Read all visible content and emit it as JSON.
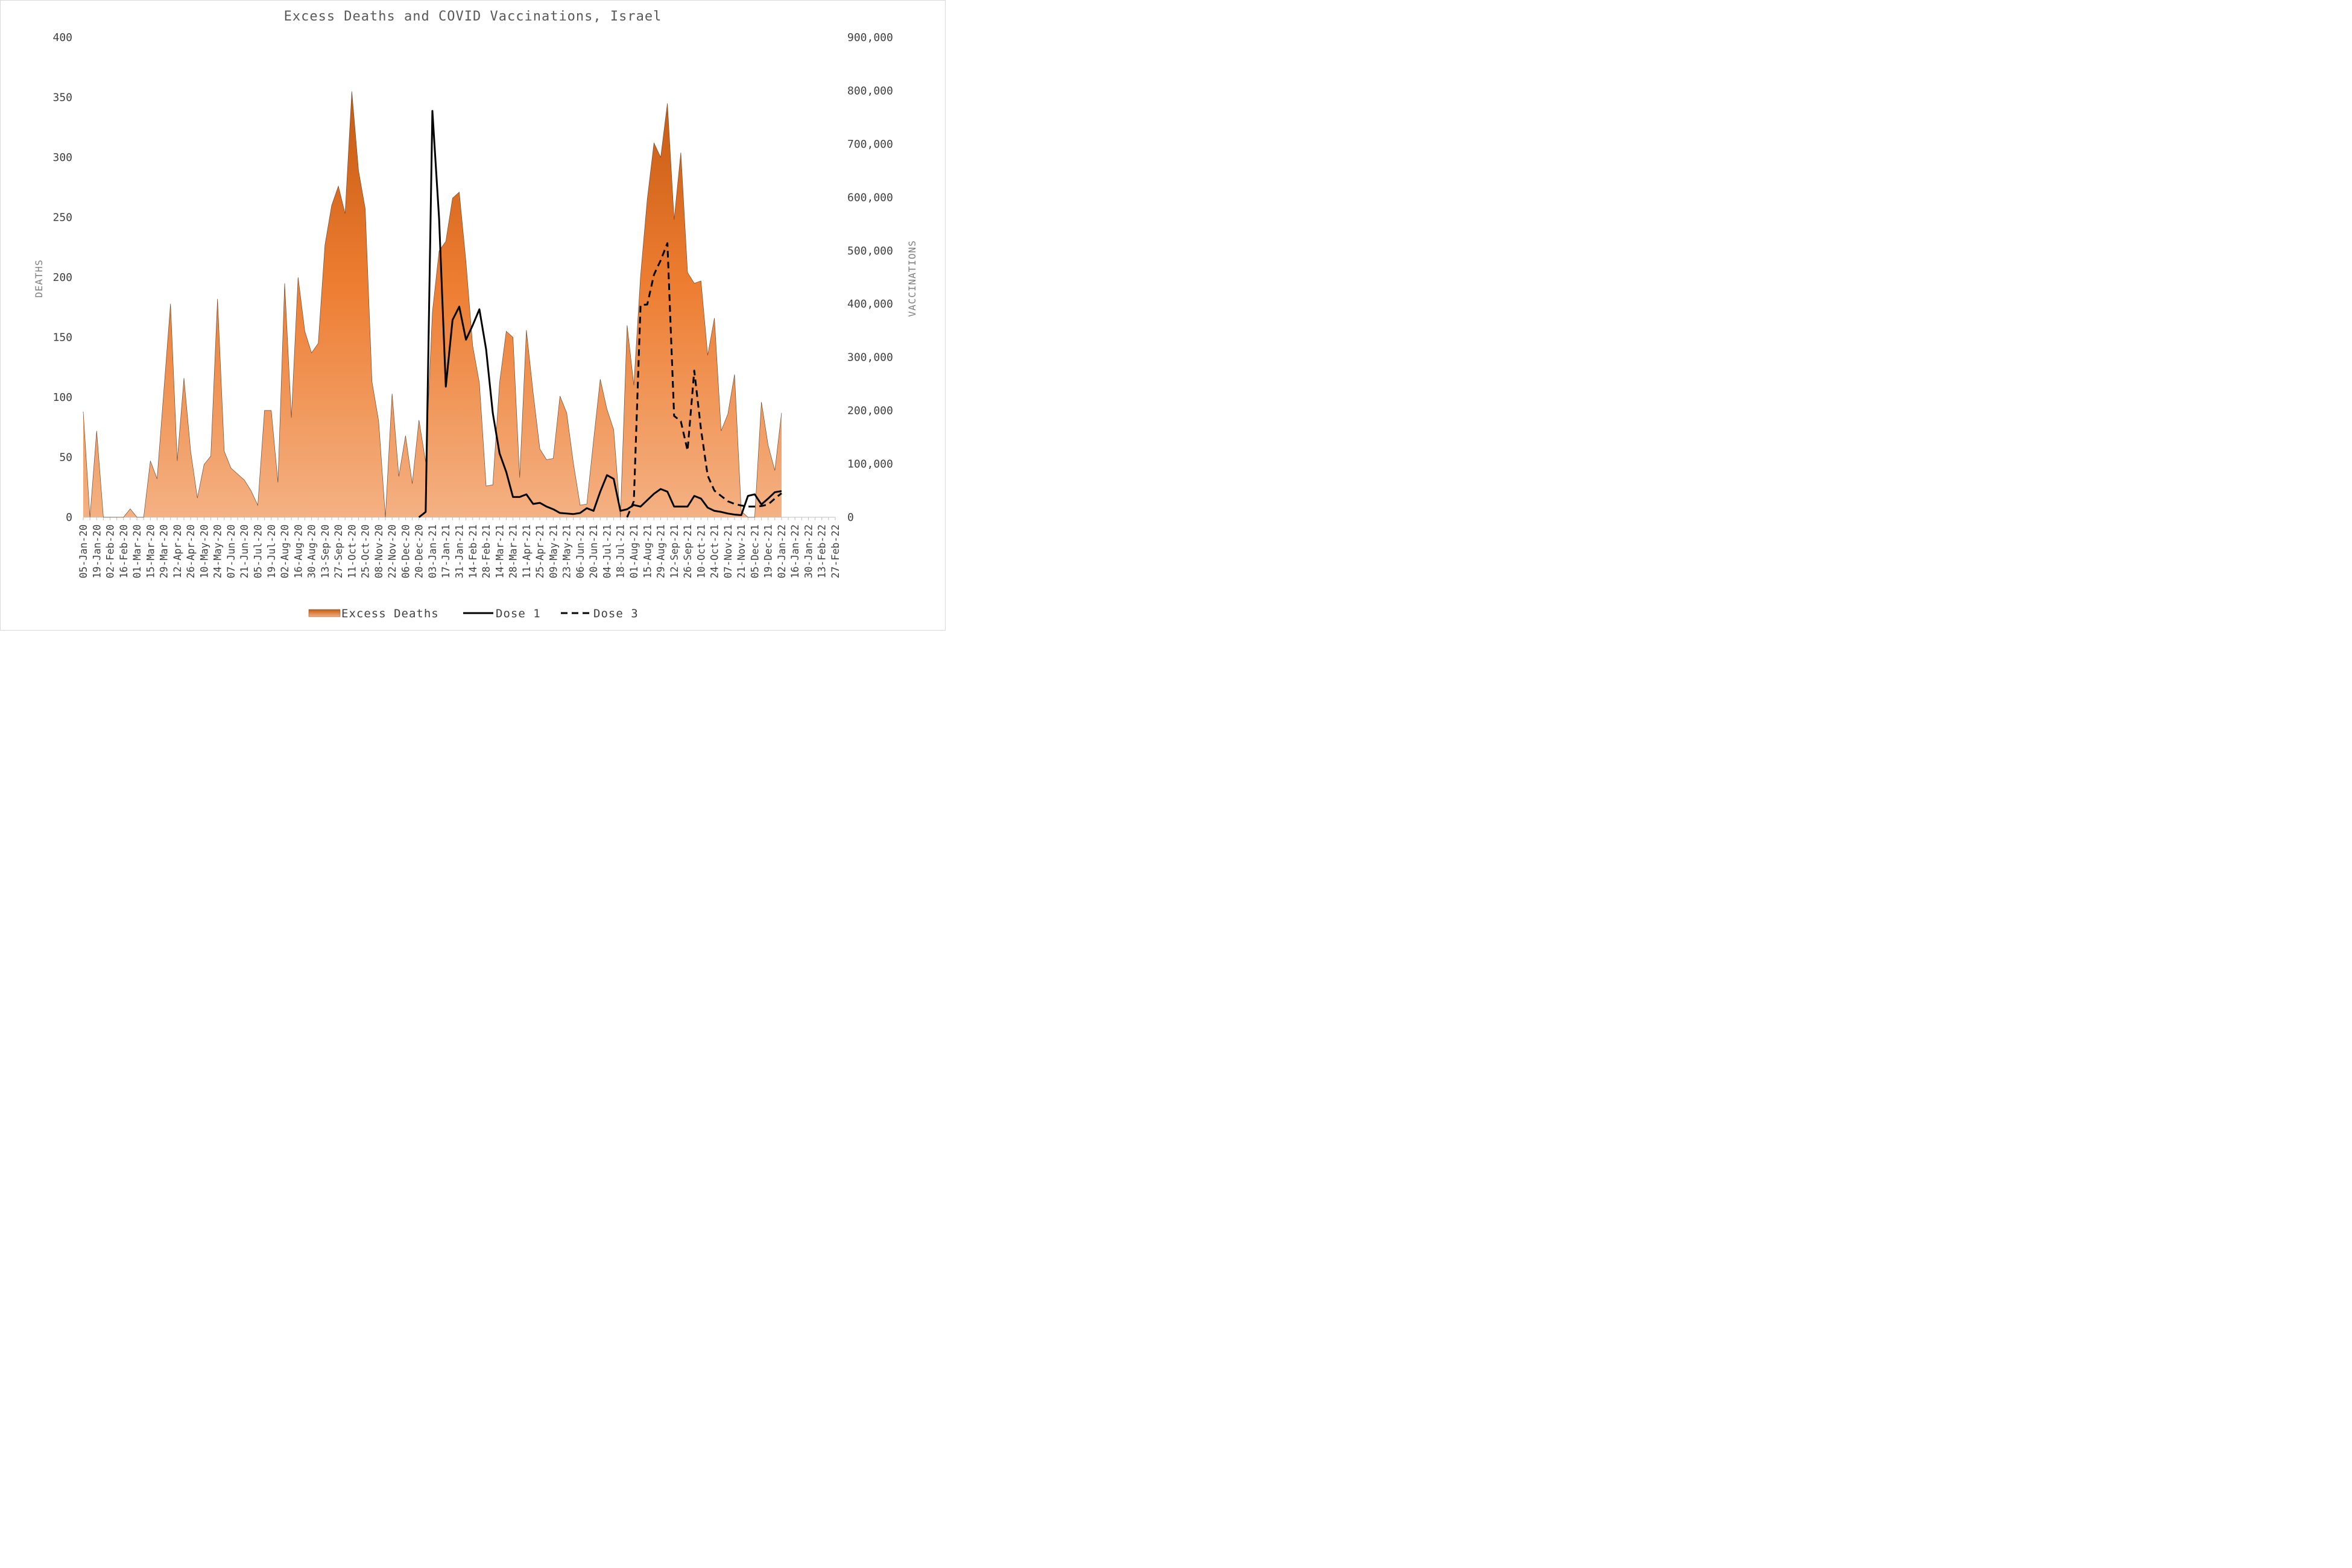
{
  "chart_data": {
    "type": "area",
    "title": "Excess Deaths and COVID Vaccinations, Israel",
    "ylabel": "DEATHS",
    "y2label": "VACCINATIONS",
    "ylim": [
      0,
      400
    ],
    "y2lim": [
      0,
      900000
    ],
    "yticks": [
      "0",
      "50",
      "100",
      "150",
      "200",
      "250",
      "300",
      "350",
      "400"
    ],
    "y2ticks": [
      "0",
      "100,000",
      "200,000",
      "300,000",
      "400,000",
      "500,000",
      "600,000",
      "700,000",
      "800,000",
      "900,000"
    ],
    "x_tick_labels": [
      "05-Jan-20",
      "19-Jan-20",
      "02-Feb-20",
      "16-Feb-20",
      "01-Mar-20",
      "15-Mar-20",
      "29-Mar-20",
      "12-Apr-20",
      "26-Apr-20",
      "10-May-20",
      "24-May-20",
      "07-Jun-20",
      "21-Jun-20",
      "05-Jul-20",
      "19-Jul-20",
      "02-Aug-20",
      "16-Aug-20",
      "30-Aug-20",
      "13-Sep-20",
      "27-Sep-20",
      "11-Oct-20",
      "25-Oct-20",
      "08-Nov-20",
      "22-Nov-20",
      "06-Dec-20",
      "20-Dec-20",
      "03-Jan-21",
      "17-Jan-21",
      "31-Jan-21",
      "14-Feb-21",
      "28-Feb-21",
      "14-Mar-21",
      "28-Mar-21",
      "11-Apr-21",
      "25-Apr-21",
      "09-May-21",
      "23-May-21",
      "06-Jun-21",
      "20-Jun-21",
      "04-Jul-21",
      "18-Jul-21",
      "01-Aug-21",
      "15-Aug-21",
      "29-Aug-21",
      "12-Sep-21",
      "26-Sep-21",
      "10-Oct-21",
      "24-Oct-21",
      "07-Nov-21",
      "21-Nov-21",
      "05-Dec-21",
      "19-Dec-21",
      "02-Jan-22",
      "16-Jan-22",
      "30-Jan-22",
      "13-Feb-22",
      "27-Feb-22"
    ],
    "series": [
      {
        "name": "Excess Deaths",
        "axis": "left",
        "start_week": 0,
        "values": [
          88,
          0,
          72,
          0,
          0,
          0,
          0,
          7,
          0,
          0,
          47,
          32,
          105,
          178,
          47,
          116,
          55,
          16,
          44,
          51,
          182,
          55,
          41,
          36,
          31,
          22,
          10,
          89,
          89,
          29,
          195,
          83,
          200,
          155,
          137,
          145,
          227,
          260,
          276,
          253,
          355,
          289,
          257,
          113,
          80,
          0,
          103,
          34,
          68,
          28,
          81,
          46,
          171,
          222,
          230,
          266,
          271,
          213,
          143,
          112,
          26,
          27,
          112,
          155,
          150,
          33,
          156,
          104,
          57,
          48,
          49,
          101,
          87,
          45,
          10,
          11,
          64,
          115,
          90,
          73,
          0,
          160,
          110,
          201,
          265,
          312,
          300,
          345,
          248,
          304,
          204,
          195,
          197,
          135,
          166,
          72,
          86,
          119,
          5,
          0,
          0,
          96,
          60,
          39,
          87
        ]
      },
      {
        "name": "Dose 1",
        "axis": "right",
        "start_week": 50,
        "values": [
          0,
          10000,
          762000,
          560000,
          245000,
          370000,
          395000,
          333000,
          360000,
          390000,
          315000,
          195000,
          120000,
          85000,
          38000,
          38000,
          43000,
          25000,
          27000,
          20000,
          15000,
          8000,
          7000,
          6000,
          8000,
          17000,
          12000,
          48000,
          79000,
          72000,
          12000,
          15000,
          23000,
          20000,
          32000,
          44000,
          53000,
          48000,
          20000,
          20000,
          20000,
          40000,
          35000,
          18000,
          12000,
          10000,
          7000,
          5000,
          4000,
          40000,
          43000,
          24000,
          35000,
          47000,
          49000
        ]
      },
      {
        "name": "Dose 3",
        "axis": "right",
        "start_week": 81,
        "values": [
          0,
          30000,
          398000,
          399000,
          455000,
          482000,
          514000,
          190000,
          180000,
          125000,
          275000,
          165000,
          78000,
          50000,
          40000,
          30000,
          25000,
          22000,
          20000,
          20000,
          21000,
          24000,
          35000,
          45000
        ]
      }
    ],
    "legend_position": "bottom",
    "colors": {
      "area_top": "#c55a11",
      "area_mid": "#ed7d31",
      "area_bottom": "#f4b183",
      "line": "#000000"
    }
  }
}
